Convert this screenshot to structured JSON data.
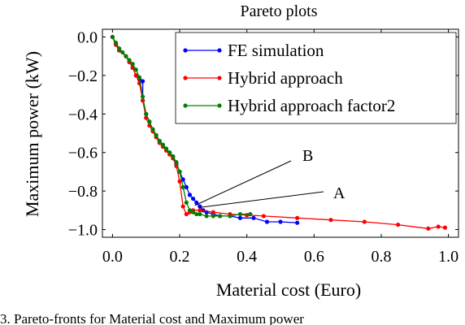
{
  "caption": "3.  Pareto-fronts for Material cost and Maximum power",
  "chart_data": {
    "type": "line",
    "title": "Pareto plots",
    "xlabel": "Material cost (Euro)",
    "ylabel": "Maximum power (kW)",
    "xlim": [
      -0.03,
      1.03
    ],
    "ylim": [
      -1.04,
      0.04
    ],
    "xticks": [
      0.0,
      0.2,
      0.4,
      0.6,
      0.8,
      1.0
    ],
    "xtick_labels": [
      "0.0",
      "0.2",
      "0.4",
      "0.6",
      "0.8",
      "1.0"
    ],
    "yticks": [
      0.0,
      -0.2,
      -0.4,
      -0.6,
      -0.8,
      -1.0
    ],
    "ytick_labels": [
      "0.0",
      "−0.2",
      "−0.4",
      "−0.6",
      "−0.8",
      "−1.0"
    ],
    "grid": false,
    "legend_position": "top-right",
    "series": [
      {
        "name": "FE simulation",
        "color": "#0000ff",
        "x": [
          0.0,
          0.01,
          0.02,
          0.04,
          0.05,
          0.06,
          0.07,
          0.08,
          0.09,
          0.09,
          0.1,
          0.11,
          0.12,
          0.13,
          0.14,
          0.15,
          0.16,
          0.17,
          0.18,
          0.19,
          0.2,
          0.21,
          0.22,
          0.23,
          0.24,
          0.25,
          0.26,
          0.27,
          0.28,
          0.3,
          0.32,
          0.35,
          0.38,
          0.42,
          0.46,
          0.5,
          0.55
        ],
        "y": [
          0.0,
          -0.04,
          -0.07,
          -0.1,
          -0.13,
          -0.16,
          -0.2,
          -0.22,
          -0.23,
          -0.33,
          -0.4,
          -0.44,
          -0.48,
          -0.51,
          -0.54,
          -0.56,
          -0.58,
          -0.6,
          -0.62,
          -0.66,
          -0.7,
          -0.74,
          -0.78,
          -0.82,
          -0.84,
          -0.86,
          -0.88,
          -0.9,
          -0.91,
          -0.92,
          -0.93,
          -0.93,
          -0.94,
          -0.94,
          -0.96,
          -0.96,
          -0.965
        ]
      },
      {
        "name": "Hybrid approach",
        "color": "#ff0000",
        "x": [
          0.0,
          0.01,
          0.02,
          0.04,
          0.05,
          0.06,
          0.07,
          0.08,
          0.09,
          0.1,
          0.11,
          0.12,
          0.13,
          0.14,
          0.15,
          0.16,
          0.17,
          0.18,
          0.19,
          0.2,
          0.21,
          0.22,
          0.23,
          0.24,
          0.26,
          0.3,
          0.35,
          0.4,
          0.45,
          0.55,
          0.65,
          0.75,
          0.85,
          0.94,
          0.97,
          0.99
        ],
        "y": [
          0.0,
          -0.04,
          -0.07,
          -0.1,
          -0.13,
          -0.16,
          -0.2,
          -0.24,
          -0.33,
          -0.42,
          -0.46,
          -0.49,
          -0.52,
          -0.55,
          -0.57,
          -0.59,
          -0.61,
          -0.63,
          -0.67,
          -0.75,
          -0.88,
          -0.92,
          -0.91,
          -0.9,
          -0.9,
          -0.91,
          -0.92,
          -0.925,
          -0.93,
          -0.94,
          -0.95,
          -0.96,
          -0.975,
          -0.995,
          -0.985,
          -0.99
        ]
      },
      {
        "name": "Hybrid approach factor2",
        "color": "#008000",
        "x": [
          0.0,
          0.01,
          0.02,
          0.03,
          0.04,
          0.05,
          0.06,
          0.07,
          0.08,
          0.09,
          0.1,
          0.11,
          0.12,
          0.13,
          0.14,
          0.15,
          0.16,
          0.17,
          0.18,
          0.19,
          0.2,
          0.21,
          0.22,
          0.23,
          0.24,
          0.25,
          0.26,
          0.28,
          0.3,
          0.32,
          0.35,
          0.38,
          0.41
        ],
        "y": [
          0.0,
          -0.03,
          -0.06,
          -0.08,
          -0.1,
          -0.12,
          -0.14,
          -0.17,
          -0.21,
          -0.31,
          -0.4,
          -0.44,
          -0.48,
          -0.51,
          -0.54,
          -0.56,
          -0.58,
          -0.6,
          -0.62,
          -0.65,
          -0.7,
          -0.78,
          -0.86,
          -0.9,
          -0.91,
          -0.92,
          -0.92,
          -0.93,
          -0.93,
          -0.93,
          -0.93,
          -0.92,
          -0.92
        ]
      }
    ],
    "annotations": [
      {
        "text": "B",
        "x": 0.245,
        "y": -0.875
      },
      {
        "text": "A",
        "x": 0.26,
        "y": -0.885
      }
    ]
  }
}
